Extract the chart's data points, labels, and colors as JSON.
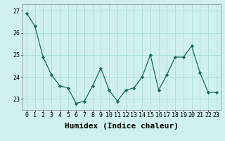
{
  "x": [
    0,
    1,
    2,
    3,
    4,
    5,
    6,
    7,
    8,
    9,
    10,
    11,
    12,
    13,
    14,
    15,
    16,
    17,
    18,
    19,
    20,
    21,
    22,
    23
  ],
  "y": [
    26.9,
    26.3,
    24.9,
    24.1,
    23.6,
    23.5,
    22.8,
    22.9,
    23.6,
    24.4,
    23.4,
    22.9,
    23.4,
    23.5,
    24.0,
    25.0,
    23.4,
    24.1,
    24.9,
    24.9,
    25.4,
    24.2,
    23.3,
    23.3
  ],
  "line_color": "#1a6b5a",
  "marker": "D",
  "marker_size": 2.2,
  "bg_color": "#cff0ec",
  "grid_color": "#aaddda",
  "xlabel": "Humidex (Indice chaleur)",
  "ylim": [
    22.5,
    27.3
  ],
  "xlim": [
    -0.5,
    23.5
  ],
  "yticks": [
    23,
    24,
    25,
    26,
    27
  ],
  "xticks": [
    0,
    1,
    2,
    3,
    4,
    5,
    6,
    7,
    8,
    9,
    10,
    11,
    12,
    13,
    14,
    15,
    16,
    17,
    18,
    19,
    20,
    21,
    22,
    23
  ],
  "tick_fontsize": 6,
  "xlabel_fontsize": 8,
  "spine_color": "#999999"
}
